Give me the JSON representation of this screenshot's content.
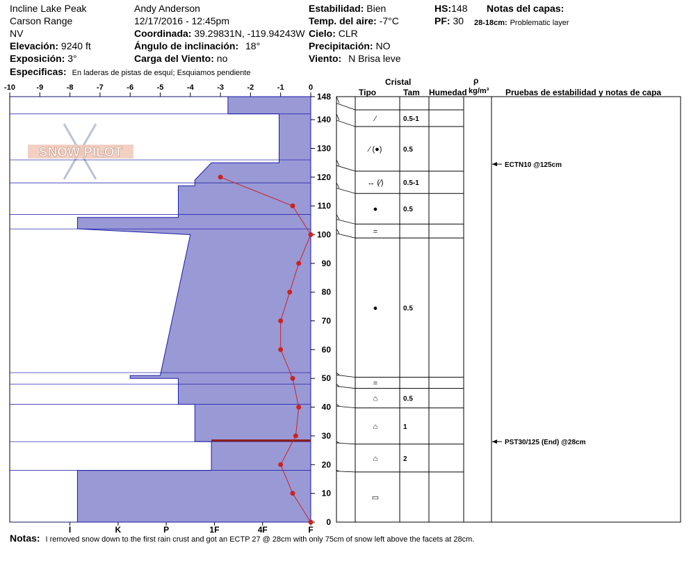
{
  "header": {
    "location": "Incline Lake Peak",
    "range": "Carson Range",
    "state": "NV",
    "elevation_label": "Elevación:",
    "elevation": "9240 ft",
    "aspect_label": "Exposición:",
    "aspect": "3°",
    "observer": "Andy Anderson",
    "datetime": "12/17/2016 - 12:45pm",
    "coord_label": "Coordinada:",
    "coord": "39.29831N, -119.94243W",
    "incline_label": "Ángulo de inclinación:",
    "incline": "18°",
    "wind_load_label": "Carga del Viento:",
    "wind_load": "no",
    "stability_label": "Estabilidad:",
    "stability": "Bien",
    "air_temp_label": "Temp. del aire:",
    "air_temp": "-7°C",
    "sky_label": "Cielo:",
    "sky": "CLR",
    "precip_label": "Precipitación:",
    "precip": "NO",
    "wind_label": "Viento:",
    "wind": "N Brisa leve",
    "hs_label": "HS:",
    "hs": "148",
    "pf_label": "PF:",
    "pf": "30",
    "layer_notes_label": "Notas del capas:",
    "layer_note_depth": "28-18cm:",
    "layer_note": "Problematic layer",
    "specifics_label": "Especificas:",
    "specifics": "En laderas de pistas de esquí; Esquiamos pendiente",
    "notes_label": "Notas:",
    "notes": "I removed snow down to the first rain crust and got an ECTP 27 @ 28cm with only 75cm of snow left above the facets at 28cm."
  },
  "table_headers": {
    "crystal": "Cristal",
    "type": "Tipo",
    "size": "Tam",
    "moisture": "Humedad",
    "rho": "ρ",
    "density_unit": "kg/m³",
    "tests": "Pruebas de estabilidad y notas de capa"
  },
  "logo_text": "SNOW PILOT",
  "colors": {
    "hardness_fill": "#9999d6",
    "hardness_stroke": "#1a1aa8",
    "temperature_line": "#cc2222",
    "layer_highlight": "#8b1a1a"
  },
  "chart_data": {
    "type": "snow-profile",
    "temp_axis": {
      "ticks": [
        -10,
        -9,
        -8,
        -7,
        -6,
        -5,
        -4,
        -3,
        -2,
        -1,
        0
      ],
      "range": [
        -10,
        0
      ]
    },
    "hardness_axis": {
      "labels": [
        "I",
        "K",
        "P",
        "1F",
        "4F",
        "F"
      ]
    },
    "height_axis": {
      "ticks": [
        0,
        10,
        20,
        30,
        40,
        50,
        60,
        70,
        80,
        90,
        100,
        110,
        120,
        130,
        140,
        148
      ],
      "range": [
        0,
        148
      ]
    },
    "hardness_profile": [
      [
        0.0,
        0
      ],
      [
        7.75,
        0
      ],
      [
        7.75,
        18
      ],
      [
        3.3,
        18
      ],
      [
        3.3,
        28
      ],
      [
        3.85,
        28
      ],
      [
        3.85,
        41
      ],
      [
        4.4,
        41
      ],
      [
        4.4,
        50
      ],
      [
        6.0,
        50
      ],
      [
        6.0,
        51
      ],
      [
        5.0,
        51
      ],
      [
        4.0,
        100
      ],
      [
        7.75,
        102
      ],
      [
        7.75,
        106
      ],
      [
        4.4,
        106
      ],
      [
        4.4,
        117
      ],
      [
        3.85,
        117
      ],
      [
        3.85,
        119
      ],
      [
        3.3,
        125
      ],
      [
        1.05,
        125
      ],
      [
        1.05,
        142
      ],
      [
        2.75,
        142
      ],
      [
        2.75,
        148
      ],
      [
        0.0,
        148
      ]
    ],
    "temperature_profile": [
      {
        "height": 0,
        "temp": 0
      },
      {
        "height": 10,
        "temp": -0.6
      },
      {
        "height": 20,
        "temp": -1.0
      },
      {
        "height": 30,
        "temp": -0.5
      },
      {
        "height": 40,
        "temp": -0.4
      },
      {
        "height": 50,
        "temp": -0.6
      },
      {
        "height": 60,
        "temp": -1.0
      },
      {
        "height": 70,
        "temp": -1.0
      },
      {
        "height": 80,
        "temp": -0.7
      },
      {
        "height": 90,
        "temp": -0.4
      },
      {
        "height": 100,
        "temp": 0
      },
      {
        "height": 110,
        "temp": -0.6
      },
      {
        "height": 120,
        "temp": -3.0
      }
    ],
    "layer_boundaries": [
      148,
      142,
      126,
      118,
      107,
      102,
      52,
      48,
      41,
      28,
      18,
      0
    ],
    "highlight_layer": [
      28,
      28.5
    ],
    "layers": [
      {
        "top": 148,
        "bottom": 142,
        "type": "⁄",
        "size": "0.5-1"
      },
      {
        "top": 142,
        "bottom": 126,
        "type": "⁄ (●)",
        "size": "0.5"
      },
      {
        "top": 126,
        "bottom": 118,
        "type": "↔ (⁄)",
        "size": "0.5-1"
      },
      {
        "top": 118,
        "bottom": 107,
        "type": "●",
        "size": "0.5"
      },
      {
        "top": 107,
        "bottom": 102,
        "type": "=",
        "size": ""
      },
      {
        "top": 102,
        "bottom": 52,
        "type": "●",
        "size": "0.5"
      },
      {
        "top": 52,
        "bottom": 48,
        "type": "=",
        "size": ""
      },
      {
        "top": 48,
        "bottom": 41,
        "type": "⌂",
        "size": "0.5"
      },
      {
        "top": 41,
        "bottom": 28,
        "type": "⌂",
        "size": "1"
      },
      {
        "top": 28,
        "bottom": 18,
        "type": "⌂",
        "size": "2"
      },
      {
        "top": 18,
        "bottom": 0,
        "type": "▭",
        "size": ""
      }
    ],
    "tests": [
      {
        "height": 125,
        "label": "ECTN10 @125cm"
      },
      {
        "height": 28,
        "label": "PST30/125 (End) @28cm"
      }
    ]
  }
}
